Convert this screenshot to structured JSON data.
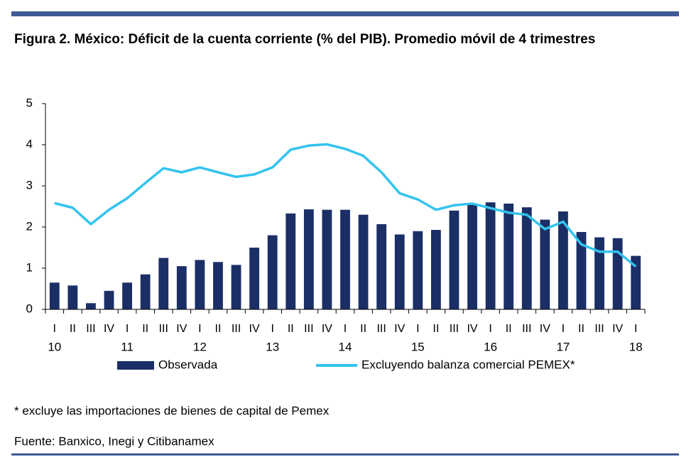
{
  "chart_data": {
    "type": "bar_line",
    "title": "Figura 2. México: Déficit de la cuenta corriente (% del PIB).  Promedio móvil de 4 trimestres",
    "categories": [
      "I",
      "II",
      "III",
      "IV",
      "I",
      "II",
      "III",
      "IV",
      "I",
      "II",
      "III",
      "IV",
      "I",
      "II",
      "III",
      "IV",
      "I",
      "II",
      "III",
      "IV",
      "I",
      "II",
      "III",
      "IV",
      "I",
      "II",
      "III",
      "IV",
      "I",
      "II",
      "III",
      "IV",
      "I"
    ],
    "year_labels": [
      "10",
      null,
      null,
      null,
      "11",
      null,
      null,
      null,
      "12",
      null,
      null,
      null,
      "13",
      null,
      null,
      null,
      "14",
      null,
      null,
      null,
      "15",
      null,
      null,
      null,
      "16",
      null,
      null,
      null,
      "17",
      null,
      null,
      null,
      "18"
    ],
    "series": [
      {
        "name": "Observada",
        "type": "bar",
        "color": "#1b2f66",
        "values": [
          0.65,
          0.58,
          0.15,
          0.45,
          0.65,
          0.85,
          1.25,
          1.05,
          1.2,
          1.15,
          1.08,
          1.5,
          1.8,
          2.33,
          2.43,
          2.42,
          2.42,
          2.3,
          2.07,
          1.82,
          1.9,
          1.93,
          2.4,
          2.55,
          2.6,
          2.57,
          2.48,
          2.18,
          2.38,
          1.88,
          1.75,
          1.73,
          1.3
        ]
      },
      {
        "name": "Excluyendo balanza comercial PEMEX*",
        "type": "line",
        "color": "#33c3ef",
        "values": [
          2.58,
          2.47,
          2.07,
          2.42,
          2.7,
          3.07,
          3.43,
          3.33,
          3.45,
          3.33,
          3.22,
          3.28,
          3.45,
          3.88,
          3.98,
          4.01,
          3.9,
          3.73,
          3.33,
          2.82,
          2.67,
          2.42,
          2.53,
          2.57,
          2.46,
          2.35,
          2.3,
          1.95,
          2.13,
          1.58,
          1.4,
          1.4,
          1.04
        ]
      }
    ],
    "ylim": [
      0,
      5
    ],
    "yticks": [
      0,
      1,
      2,
      3,
      4,
      5
    ],
    "grid": false,
    "footnote": "* excluye las importaciones de bienes de capital de Pemex",
    "source": "Fuente: Banxico, Inegi y Citibanamex"
  }
}
